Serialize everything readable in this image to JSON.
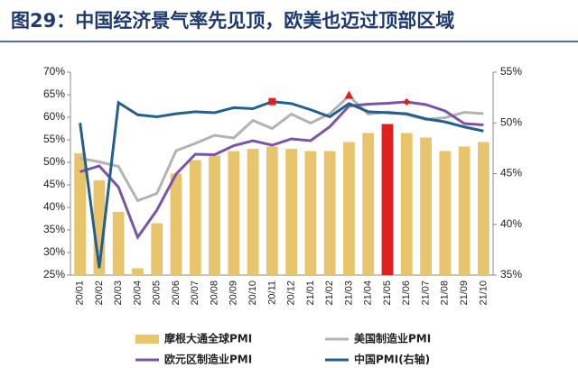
{
  "chart_data": {
    "type": "bar",
    "title": "图29：中国经济景气率先见顶，欧美也迈过顶部区域",
    "categories": [
      "20/01",
      "20/02",
      "20/03",
      "20/04",
      "20/05",
      "20/06",
      "20/07",
      "20/08",
      "20/09",
      "20/10",
      "20/11",
      "20/12",
      "21/01",
      "21/02",
      "21/03",
      "21/04",
      "21/05",
      "21/06",
      "21/07",
      "21/08",
      "21/09",
      "21/10"
    ],
    "ylim": [
      25,
      70
    ],
    "yticks": [
      {
        "value": 25,
        "label": "25%"
      },
      {
        "value": 30,
        "label": "30%"
      },
      {
        "value": 35,
        "label": "35%"
      },
      {
        "value": 40,
        "label": "40%"
      },
      {
        "value": 45,
        "label": "45%"
      },
      {
        "value": 50,
        "label": "50%"
      },
      {
        "value": 55,
        "label": "55%"
      },
      {
        "value": 60,
        "label": "60%"
      },
      {
        "value": 65,
        "label": "65%"
      },
      {
        "value": 70,
        "label": "70%"
      }
    ],
    "y2lim": [
      35,
      55
    ],
    "y2ticks": [
      {
        "value": 35,
        "label": "35%"
      },
      {
        "value": 40,
        "label": "40%"
      },
      {
        "value": 45,
        "label": "45%"
      },
      {
        "value": 50,
        "label": "50%"
      },
      {
        "value": 55,
        "label": "55%"
      }
    ],
    "series": [
      {
        "name": "摩根大通全球PMI",
        "type": "bar",
        "color": "#e8c46c",
        "values": [
          52,
          46,
          39,
          26.5,
          36.5,
          47.5,
          50.5,
          51.5,
          52.5,
          53,
          53.5,
          53,
          52.5,
          52.5,
          54.5,
          56.5,
          58.5,
          56.5,
          55.5,
          52.5,
          53.5,
          54.5
        ],
        "marker": {
          "index": 16,
          "color": "#e0201c"
        }
      },
      {
        "name": "美国制造业PMI",
        "type": "line",
        "color": "#b3b3b3",
        "values": [
          50.9,
          50.1,
          49.1,
          41.5,
          43.1,
          52.6,
          54.2,
          56,
          55.4,
          59.3,
          57.5,
          60.7,
          58.7,
          60.8,
          64.7,
          60.7,
          61.2,
          60.6,
          59.5,
          59.9,
          61.1,
          60.8
        ],
        "marker": {
          "index": 14,
          "shape": "triangle",
          "color": "#e0201c"
        }
      },
      {
        "name": "欧元区制造业PMI",
        "type": "line",
        "color": "#7b53a8",
        "values": [
          47.9,
          49.2,
          44.5,
          33.4,
          39.4,
          47.4,
          51.8,
          51.7,
          53.7,
          54.8,
          53.8,
          55.2,
          54.8,
          57.9,
          62.5,
          62.9,
          63.1,
          63.4,
          62.8,
          61.4,
          58.6,
          58.3
        ],
        "marker": {
          "index": 17,
          "shape": "diamond",
          "color": "#e0201c"
        }
      },
      {
        "name": "中国PMI(右轴)",
        "type": "line",
        "axis": "y2",
        "color": "#23608f",
        "values": [
          50.0,
          35.7,
          52.0,
          50.8,
          50.6,
          50.9,
          51.1,
          51.0,
          51.5,
          51.4,
          52.1,
          51.9,
          51.3,
          50.6,
          51.9,
          51.1,
          51.0,
          50.9,
          50.4,
          50.1,
          49.6,
          49.2
        ],
        "marker": {
          "index": 10,
          "shape": "square",
          "color": "#e0201c"
        }
      }
    ]
  }
}
